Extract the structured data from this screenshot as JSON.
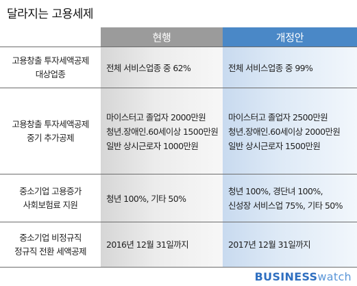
{
  "title": "달라지는 고용세제",
  "headers": {
    "current": "현행",
    "revised": "개정안"
  },
  "rows": [
    {
      "label": [
        "고용창출 투자세액공제",
        "대상업종"
      ],
      "current": [
        "전체 서비스업종 중 62%"
      ],
      "revised": [
        "전체 서비스업종 중 99%"
      ]
    },
    {
      "label": [
        "고용창출 투자세액공제",
        "중기 추가공제"
      ],
      "current": [
        "마이스터고 졸업자 2000만원",
        "청년.장애인.60세이상 1500만원",
        "일반 상시근로자 1000만원"
      ],
      "revised": [
        "마이스터고 졸업자 2500만원",
        "청년.장애인.60세이상 2000만원",
        "일반 상시근로자 1500만원"
      ]
    },
    {
      "label": [
        "중소기업 고용증가",
        "사회보험료 지원"
      ],
      "current": [
        "청년 100%, 기타 50%"
      ],
      "revised": [
        "청년 100%, 경단녀 100%,",
        "신성장 서비스업 75%, 기타 50%"
      ]
    },
    {
      "label": [
        "중소기업 비정규직",
        "정규직 전환 세액공제"
      ],
      "current": [
        "2016년 12월 31일까지"
      ],
      "revised": [
        "2017년 12월 31일까지"
      ]
    }
  ],
  "logo": {
    "part1": "BUSINESS",
    "part2": "watch"
  },
  "colors": {
    "header_current": "#9b9b9b",
    "header_revised": "#4a88c7",
    "logo": "#2f6fc0"
  }
}
